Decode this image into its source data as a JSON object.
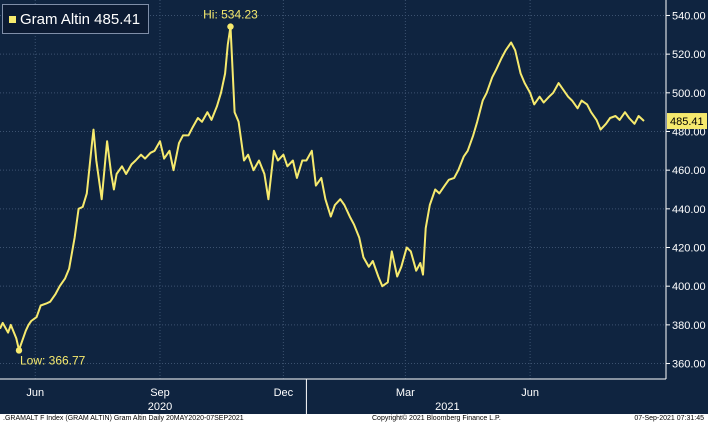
{
  "legend": {
    "label": "Gram Altin 485.41"
  },
  "footer": {
    "left": ".GRAMALT F Index (GRAM ALTIN) Gram Altin  Daily 20MAY2020-07SEP2021",
    "center": "Copyright© 2021 Bloomberg Finance L.P.",
    "right": "07-Sep-2021 07:31:45"
  },
  "colors": {
    "background": "#0f2440",
    "line": "#f6ea6e",
    "grid": "#3c5270",
    "axis_text": "#ffffff"
  },
  "chart_data": {
    "type": "line",
    "title": "",
    "xlabel": "",
    "ylabel": "",
    "ylim": [
      352,
      548
    ],
    "xlim": [
      "2020-05-20",
      "2021-09-07"
    ],
    "yticks": [
      360,
      380,
      400,
      420,
      440,
      460,
      480,
      500,
      520,
      540
    ],
    "y_tick_labels": [
      "360.00",
      "380.00",
      "400.00",
      "420.00",
      "440.00",
      "460.00",
      "480.00",
      "500.00",
      "520.00",
      "540.00"
    ],
    "x_ticks": [
      {
        "date": "2020-06-15",
        "label": "Jun"
      },
      {
        "date": "2020-09-15",
        "label": "Sep"
      },
      {
        "date": "2020-12-15",
        "label": "Dec"
      },
      {
        "date": "2021-03-15",
        "label": "Mar"
      },
      {
        "date": "2021-06-15",
        "label": "Jun"
      }
    ],
    "year_labels": [
      {
        "date": "2020-09-15",
        "label": "2020"
      },
      {
        "date": "2021-04-15",
        "label": "2021"
      }
    ],
    "year_separators": [
      "2021-01-01"
    ],
    "grid": true,
    "series": [
      {
        "values": [
          [
            "2020-05-20",
            378
          ],
          [
            "2020-05-22",
            381
          ],
          [
            "2020-05-26",
            376
          ],
          [
            "2020-05-28",
            380
          ],
          [
            "2020-06-01",
            373
          ],
          [
            "2020-06-03",
            367
          ],
          [
            "2020-06-05",
            371
          ],
          [
            "2020-06-08",
            377
          ],
          [
            "2020-06-10",
            380
          ],
          [
            "2020-06-12",
            382
          ],
          [
            "2020-06-16",
            384
          ],
          [
            "2020-06-19",
            390
          ],
          [
            "2020-06-23",
            391
          ],
          [
            "2020-06-26",
            392
          ],
          [
            "2020-06-30",
            396
          ],
          [
            "2020-07-03",
            400
          ],
          [
            "2020-07-07",
            404
          ],
          [
            "2020-07-10",
            409
          ],
          [
            "2020-07-14",
            425
          ],
          [
            "2020-07-17",
            440
          ],
          [
            "2020-07-20",
            441
          ],
          [
            "2020-07-23",
            448
          ],
          [
            "2020-07-27",
            475
          ],
          [
            "2020-07-28",
            481
          ],
          [
            "2020-07-30",
            465
          ],
          [
            "2020-08-03",
            445
          ],
          [
            "2020-08-06",
            468
          ],
          [
            "2020-08-07",
            475
          ],
          [
            "2020-08-10",
            458
          ],
          [
            "2020-08-12",
            450
          ],
          [
            "2020-08-14",
            458
          ],
          [
            "2020-08-18",
            462
          ],
          [
            "2020-08-21",
            458
          ],
          [
            "2020-08-25",
            463
          ],
          [
            "2020-08-28",
            465
          ],
          [
            "2020-09-01",
            468
          ],
          [
            "2020-09-04",
            466
          ],
          [
            "2020-09-08",
            469
          ],
          [
            "2020-09-11",
            470
          ],
          [
            "2020-09-15",
            475
          ],
          [
            "2020-09-18",
            466
          ],
          [
            "2020-09-22",
            470
          ],
          [
            "2020-09-25",
            460
          ],
          [
            "2020-09-29",
            474
          ],
          [
            "2020-10-02",
            478
          ],
          [
            "2020-10-06",
            478
          ],
          [
            "2020-10-09",
            482
          ],
          [
            "2020-10-13",
            487
          ],
          [
            "2020-10-16",
            485
          ],
          [
            "2020-10-20",
            490
          ],
          [
            "2020-10-23",
            486
          ],
          [
            "2020-10-27",
            493
          ],
          [
            "2020-10-30",
            500
          ],
          [
            "2020-11-02",
            510
          ],
          [
            "2020-11-04",
            525
          ],
          [
            "2020-11-06",
            534.23
          ],
          [
            "2020-11-09",
            490
          ],
          [
            "2020-11-12",
            485
          ],
          [
            "2020-11-16",
            465
          ],
          [
            "2020-11-19",
            468
          ],
          [
            "2020-11-23",
            460
          ],
          [
            "2020-11-27",
            465
          ],
          [
            "2020-12-01",
            458
          ],
          [
            "2020-12-04",
            445
          ],
          [
            "2020-12-08",
            470
          ],
          [
            "2020-12-11",
            465
          ],
          [
            "2020-12-15",
            468
          ],
          [
            "2020-12-18",
            462
          ],
          [
            "2020-12-22",
            465
          ],
          [
            "2020-12-25",
            456
          ],
          [
            "2020-12-29",
            465
          ],
          [
            "2021-01-01",
            465
          ],
          [
            "2021-01-05",
            470
          ],
          [
            "2021-01-08",
            452
          ],
          [
            "2021-01-12",
            456
          ],
          [
            "2021-01-15",
            445
          ],
          [
            "2021-01-19",
            436
          ],
          [
            "2021-01-22",
            442
          ],
          [
            "2021-01-26",
            445
          ],
          [
            "2021-01-29",
            442
          ],
          [
            "2021-02-02",
            436
          ],
          [
            "2021-02-05",
            432
          ],
          [
            "2021-02-09",
            425
          ],
          [
            "2021-02-12",
            415
          ],
          [
            "2021-02-16",
            410
          ],
          [
            "2021-02-19",
            413
          ],
          [
            "2021-02-23",
            405
          ],
          [
            "2021-02-26",
            400
          ],
          [
            "2021-03-02",
            402
          ],
          [
            "2021-03-05",
            418
          ],
          [
            "2021-03-09",
            405
          ],
          [
            "2021-03-12",
            410
          ],
          [
            "2021-03-16",
            420
          ],
          [
            "2021-03-19",
            418
          ],
          [
            "2021-03-23",
            408
          ],
          [
            "2021-03-26",
            412
          ],
          [
            "2021-03-28",
            406
          ],
          [
            "2021-03-30",
            430
          ],
          [
            "2021-04-02",
            442
          ],
          [
            "2021-04-06",
            450
          ],
          [
            "2021-04-09",
            448
          ],
          [
            "2021-04-13",
            452
          ],
          [
            "2021-04-16",
            455
          ],
          [
            "2021-04-20",
            456
          ],
          [
            "2021-04-23",
            460
          ],
          [
            "2021-04-27",
            467
          ],
          [
            "2021-04-30",
            470
          ],
          [
            "2021-05-04",
            478
          ],
          [
            "2021-05-07",
            485
          ],
          [
            "2021-05-11",
            496
          ],
          [
            "2021-05-14",
            500
          ],
          [
            "2021-05-18",
            508
          ],
          [
            "2021-05-21",
            512
          ],
          [
            "2021-05-25",
            518
          ],
          [
            "2021-05-28",
            522
          ],
          [
            "2021-06-01",
            526
          ],
          [
            "2021-06-04",
            522
          ],
          [
            "2021-06-08",
            510
          ],
          [
            "2021-06-11",
            505
          ],
          [
            "2021-06-15",
            500
          ],
          [
            "2021-06-18",
            494
          ],
          [
            "2021-06-22",
            498
          ],
          [
            "2021-06-25",
            495
          ],
          [
            "2021-06-29",
            498
          ],
          [
            "2021-07-02",
            500
          ],
          [
            "2021-07-06",
            505
          ],
          [
            "2021-07-09",
            502
          ],
          [
            "2021-07-13",
            498
          ],
          [
            "2021-07-16",
            496
          ],
          [
            "2021-07-20",
            492
          ],
          [
            "2021-07-23",
            496
          ],
          [
            "2021-07-27",
            494
          ],
          [
            "2021-07-30",
            490
          ],
          [
            "2021-08-03",
            486
          ],
          [
            "2021-08-06",
            481
          ],
          [
            "2021-08-10",
            484
          ],
          [
            "2021-08-13",
            487
          ],
          [
            "2021-08-17",
            488
          ],
          [
            "2021-08-20",
            486
          ],
          [
            "2021-08-24",
            490
          ],
          [
            "2021-08-27",
            487
          ],
          [
            "2021-08-31",
            484
          ],
          [
            "2021-09-03",
            488
          ],
          [
            "2021-09-07",
            485.41
          ]
        ]
      }
    ],
    "annotations": [
      {
        "label": "Hi: 534.23",
        "date": "2020-11-06",
        "value": 534.23
      },
      {
        "label": "Low: 366.77",
        "date": "2020-06-03",
        "value": 366.77
      }
    ],
    "last_value_label": "485.41",
    "last_value": 485.41
  }
}
